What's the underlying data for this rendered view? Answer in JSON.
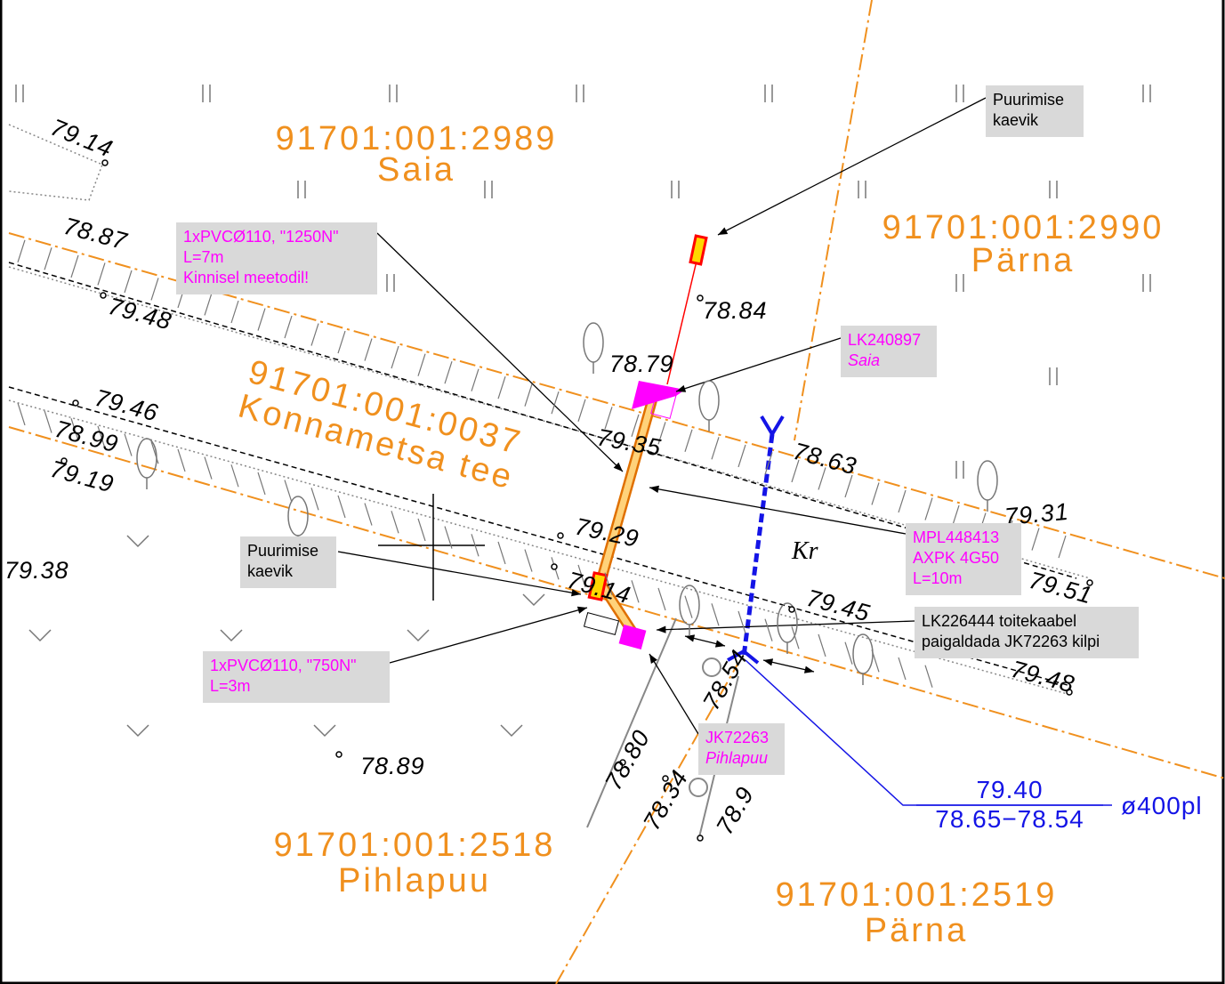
{
  "parcels": [
    {
      "id": "91701:001:2989",
      "name": "Saia"
    },
    {
      "id": "91701:001:2990",
      "name": "Pärna"
    },
    {
      "id": "91701:001:0037",
      "name": "Konnametsa tee"
    },
    {
      "id": "91701:001:2518",
      "name": "Pihlapuu"
    },
    {
      "id": "91701:001:2519",
      "name": "Pärna"
    }
  ],
  "elevations": [
    "79.14",
    "78.87",
    "79.48",
    "78.84",
    "78.79",
    "79.46",
    "78.99",
    "79.19",
    "79.35",
    "78.63",
    "79.31",
    "79.29",
    "79.38",
    "79.14",
    "79.45",
    "79.51",
    "79.48",
    "78.54",
    "78.80",
    "78.34",
    "78.9",
    "78.89"
  ],
  "marker": "Kr",
  "callouts": [
    {
      "lines": [
        "Puurimise",
        "kaevik"
      ]
    },
    {
      "lines": [
        "1xPVCØ110, \"1250N\"",
        "L=7m",
        "Kinnisel meetodil!"
      ]
    },
    {
      "lines": [
        "LK240897",
        "Saia"
      ]
    },
    {
      "lines": [
        "MPL448413",
        "AXPK 4G50",
        "L=10m"
      ]
    },
    {
      "lines": [
        "LK226444 toitekaabel",
        "paigaldada JK72263 kilpi"
      ]
    },
    {
      "lines": [
        "Puurimise",
        "kaevik"
      ]
    },
    {
      "lines": [
        "1xPVCØ110, \"750N\"",
        "L=3m"
      ]
    },
    {
      "lines": [
        "JK72263",
        "Pihlapuu"
      ]
    }
  ],
  "pipe": {
    "top": "79.40",
    "bottom": "78.65−78.54",
    "size": "ø400pl"
  }
}
